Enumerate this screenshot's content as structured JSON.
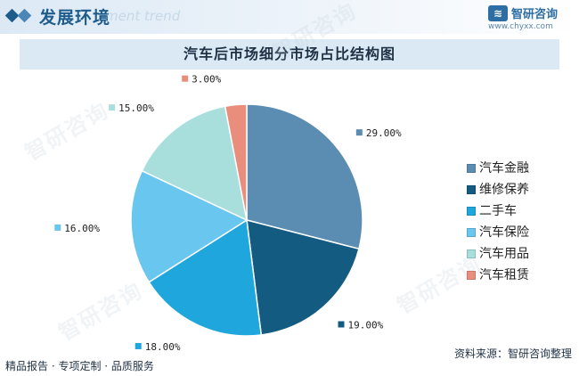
{
  "header": {
    "section_title": "发展环境",
    "section_ghost_text": "ment trend",
    "brand_name": "智研咨询",
    "brand_url": "www.chyxx.com"
  },
  "footer": {
    "left_text": "精品报告 · 专项定制 · 品质服务",
    "source_text": "资料来源：智研咨询整理"
  },
  "watermark_text": "智研咨询",
  "chart_data": {
    "type": "pie",
    "title": "汽车后市场细分市场占比结构图",
    "series": [
      {
        "name": "汽车金融",
        "value": 29.0,
        "label": "29.00%",
        "color": "#5b8db2"
      },
      {
        "name": "维修保养",
        "value": 19.0,
        "label": "19.00%",
        "color": "#145b82"
      },
      {
        "name": "二手车",
        "value": 18.0,
        "label": "18.00%",
        "color": "#1fa6dc"
      },
      {
        "name": "汽车保险",
        "value": 16.0,
        "label": "16.00%",
        "color": "#69c6ee"
      },
      {
        "name": "汽车用品",
        "value": 15.0,
        "label": "15.00%",
        "color": "#a8dfdc"
      },
      {
        "name": "汽车租赁",
        "value": 3.0,
        "label": "3.00%",
        "color": "#e98e7d"
      }
    ],
    "legend_position": "right",
    "start_angle_deg": 0,
    "direction": "clockwise"
  }
}
